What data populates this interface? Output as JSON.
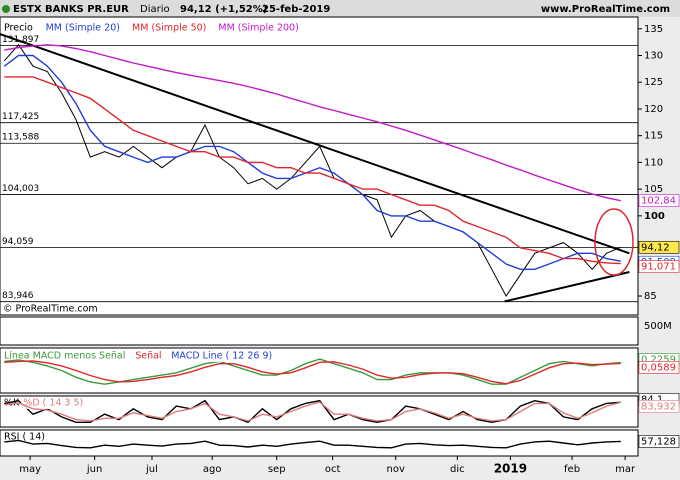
{
  "chart_data": {
    "type": "line",
    "header": {
      "title": "ESTX BANKS PR.EUR",
      "period": "Diario",
      "quote": "94,12 (+1,52%)",
      "date": "25-feb-2019",
      "site": "www.ProRealTime.com"
    },
    "x": [
      0,
      1,
      2,
      3,
      4,
      5,
      6,
      7,
      8,
      9,
      10,
      11,
      12,
      13,
      14,
      15,
      16,
      17,
      18,
      19,
      20,
      21,
      22,
      23,
      24,
      25,
      26,
      27,
      28,
      29,
      30,
      31,
      32,
      33,
      34,
      35,
      36,
      37,
      38,
      39,
      40,
      41,
      42,
      43
    ],
    "xlim": [
      -0.3,
      44.2
    ],
    "xticks": [
      {
        "value": 1.8,
        "label": "may"
      },
      {
        "value": 6.3,
        "label": "jun"
      },
      {
        "value": 10.3,
        "label": "jul"
      },
      {
        "value": 14.5,
        "label": "ago"
      },
      {
        "value": 19,
        "label": "sep"
      },
      {
        "value": 22.9,
        "label": "oct"
      },
      {
        "value": 27.3,
        "label": "nov"
      },
      {
        "value": 31.6,
        "label": "dic"
      },
      {
        "value": 35.3,
        "label": "2019"
      },
      {
        "value": 39.6,
        "label": "feb"
      },
      {
        "value": 43.3,
        "label": "mar"
      }
    ],
    "ylim": [
      82.2,
      137.2
    ],
    "yticks": [
      85,
      100,
      105,
      110,
      115,
      120,
      125,
      130,
      135
    ],
    "series": [
      {
        "name": "Precio",
        "color": "#000000",
        "values": [
          129,
          132,
          128,
          127,
          123,
          118,
          111,
          112,
          111,
          113,
          111,
          109,
          111,
          112,
          117,
          111,
          109,
          106,
          107,
          105,
          107,
          110,
          113,
          107,
          106,
          104,
          103,
          96,
          100,
          101,
          99,
          98,
          97,
          95,
          90,
          85,
          89,
          93,
          94,
          95,
          93,
          90,
          93,
          94.12
        ],
        "last_label": "94,12"
      },
      {
        "name": "MM (Simple 20)",
        "color": "#1f3fd6",
        "values": [
          128,
          130,
          130,
          128,
          125,
          121,
          116,
          113,
          112,
          111,
          110,
          111,
          111,
          112,
          113,
          113,
          112,
          110,
          108,
          107,
          107,
          108,
          109,
          108,
          106,
          104,
          101,
          100,
          100,
          99,
          99,
          98,
          97,
          95,
          93,
          91,
          90,
          90,
          91,
          92,
          93,
          93,
          92,
          91.509
        ],
        "last_label": "91,509"
      },
      {
        "name": "MM (Simple 50)",
        "color": "#e0262a",
        "values": [
          126,
          126,
          126,
          125,
          124,
          123,
          122,
          120,
          118,
          116,
          115,
          114,
          113,
          112,
          112,
          111,
          111,
          110,
          110,
          109,
          109,
          108,
          108,
          107,
          106,
          105,
          105,
          104,
          103,
          102,
          102,
          101,
          99,
          98,
          97,
          96,
          94,
          93.5,
          93,
          92,
          92,
          91.5,
          91.2,
          91.071
        ],
        "last_label": "91,071"
      },
      {
        "name": "MM (Simple 200)",
        "color": "#c21ac8",
        "values": [
          131,
          131.5,
          131.8,
          132,
          131.8,
          131.3,
          130.7,
          130,
          129.3,
          128.6,
          128,
          127.4,
          126.8,
          126.3,
          125.8,
          125.3,
          124.8,
          124.2,
          123.5,
          122.8,
          122,
          121.2,
          120.4,
          119.7,
          119,
          118.3,
          117.6,
          116.8,
          116,
          115.1,
          114.2,
          113.3,
          112.4,
          111.4,
          110.5,
          109.5,
          108.6,
          107.6,
          106.7,
          105.8,
          104.9,
          104.1,
          103.4,
          102.84
        ],
        "last_label": "102,84"
      }
    ],
    "levels": [
      {
        "value": 131.897,
        "label": "131,897"
      },
      {
        "value": 117.425,
        "label": "117,425"
      },
      {
        "value": 113.588,
        "label": "113,588"
      },
      {
        "value": 104.003,
        "label": "104,003"
      },
      {
        "value": 94.059,
        "label": "94,059"
      },
      {
        "value": 83.946,
        "label": "83,946"
      }
    ],
    "trendlines": [
      {
        "x": [
          -0.3,
          43.6
        ],
        "y": [
          134,
          93
        ]
      },
      {
        "x": [
          34.9,
          43.6
        ],
        "y": [
          84,
          89.5
        ]
      }
    ],
    "volume": {
      "title": "© ProRealTime.com",
      "ticks": [
        {
          "value": 500,
          "label": "500M"
        }
      ]
    },
    "macd": {
      "ylim": [
        -6,
        3
      ],
      "series": [
        {
          "name": "Línea MACD menos Señal",
          "color": "#3a9a3a",
          "values": [
            0.5,
            0.8,
            0.3,
            -0.5,
            -1.5,
            -3,
            -4,
            -4.5,
            -4,
            -3.5,
            -3,
            -2.5,
            -2,
            -1,
            0,
            0.5,
            -0.5,
            -1.5,
            -2.5,
            -2.5,
            -1.5,
            0,
            1,
            0,
            -1,
            -2,
            -3.5,
            -3.5,
            -2.5,
            -2,
            -2,
            -2,
            -2.5,
            -3.5,
            -4.5,
            -4.5,
            -3,
            -1.5,
            0,
            0.5,
            0,
            -0.5,
            0,
            0.2259
          ],
          "last_label": "0,2259"
        },
        {
          "name": "Señal",
          "color": "#e0262a",
          "values": [
            0.3,
            0.5,
            0.6,
            0.2,
            -0.5,
            -1.5,
            -2.6,
            -3.5,
            -4,
            -3.9,
            -3.5,
            -3,
            -2.6,
            -1.8,
            -0.8,
            0,
            0,
            -0.8,
            -1.8,
            -2.3,
            -2,
            -0.9,
            0.3,
            0.4,
            -0.3,
            -1.2,
            -2.5,
            -3.2,
            -3,
            -2.4,
            -2.1,
            -2,
            -2.2,
            -3,
            -3.9,
            -4.4,
            -3.7,
            -2.3,
            -0.9,
            0,
            0.1,
            -0.2,
            -0.1,
            0.0589
          ],
          "last_label": "0,0589"
        },
        {
          "name": "MACD Line ( 12 26 9)",
          "color": "#1f3fd6",
          "values": []
        }
      ]
    },
    "stoch": {
      "ylim": [
        0,
        100
      ],
      "series": [
        {
          "name": "%K",
          "color": "#000000",
          "values": [
            80,
            90,
            40,
            60,
            30,
            10,
            10,
            40,
            20,
            60,
            30,
            20,
            70,
            60,
            90,
            20,
            30,
            10,
            60,
            20,
            60,
            80,
            90,
            20,
            40,
            20,
            10,
            20,
            70,
            60,
            40,
            20,
            50,
            20,
            10,
            20,
            70,
            90,
            80,
            30,
            20,
            60,
            80,
            84.1
          ],
          "last_label": "84,1"
        },
        {
          "name": "%D ( 14 3 5)",
          "color": "#e07a7a",
          "values": [
            75,
            82,
            60,
            55,
            40,
            20,
            15,
            25,
            25,
            45,
            35,
            25,
            50,
            60,
            80,
            40,
            30,
            15,
            40,
            30,
            50,
            70,
            85,
            40,
            40,
            25,
            15,
            20,
            50,
            60,
            45,
            25,
            40,
            25,
            15,
            20,
            50,
            80,
            80,
            45,
            25,
            45,
            70,
            83.932
          ],
          "last_label": "83,932"
        }
      ]
    },
    "rsi": {
      "ylim": [
        0,
        100
      ],
      "series": [
        {
          "name": "RSI ( 14)",
          "color": "#000000",
          "values": [
            55,
            62,
            45,
            48,
            38,
            30,
            28,
            40,
            35,
            45,
            40,
            36,
            45,
            48,
            58,
            40,
            38,
            32,
            40,
            35,
            45,
            52,
            58,
            40,
            40,
            35,
            30,
            28,
            45,
            48,
            42,
            38,
            40,
            35,
            30,
            28,
            45,
            55,
            58,
            50,
            42,
            50,
            55,
            57.128
          ],
          "last_label": "57,128"
        }
      ]
    }
  }
}
